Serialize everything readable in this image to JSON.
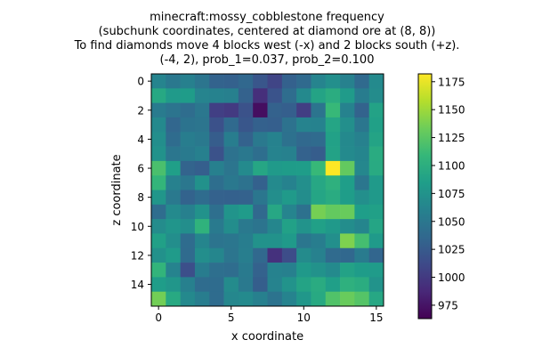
{
  "chart_data": {
    "type": "heatmap",
    "title_lines": [
      "minecraft:mossy_cobblestone frequency",
      "(subchunk coordinates, centered at diamond ore at (8, 8))",
      "To find diamonds move 4 blocks west (-x) and 2 blocks south (+z).",
      "(-4, 2), prob_1=0.037, prob_2=0.100"
    ],
    "xlabel": "x coordinate",
    "ylabel": "z coordinate",
    "x_ticks": [
      0,
      5,
      10,
      15
    ],
    "y_ticks": [
      0,
      2,
      4,
      6,
      8,
      10,
      12,
      14
    ],
    "colormap": "viridis",
    "colorbar": {
      "vmin": 963,
      "vmax": 1182,
      "ticks": [
        975,
        1000,
        1025,
        1050,
        1075,
        1100,
        1125,
        1150,
        1175
      ]
    },
    "grid_size": [
      16,
      16
    ],
    "values": [
      [
        1062,
        1051,
        1058,
        1048,
        1032,
        1030,
        1036,
        1021,
        1008,
        1030,
        1038,
        1062,
        1072,
        1059,
        1038,
        1067
      ],
      [
        1094,
        1081,
        1083,
        1062,
        1060,
        1058,
        1031,
        992,
        1019,
        1041,
        1066,
        1090,
        1098,
        1082,
        1055,
        1069
      ],
      [
        1054,
        1047,
        1041,
        1050,
        1004,
        1000,
        1018,
        971,
        1031,
        1029,
        1003,
        1047,
        1110,
        1060,
        1032,
        1089
      ],
      [
        1066,
        1035,
        1046,
        1048,
        1017,
        1038,
        1021,
        1030,
        1029,
        1045,
        1061,
        1060,
        1091,
        1072,
        1049,
        1087
      ],
      [
        1071,
        1040,
        1056,
        1052,
        1027,
        1056,
        1031,
        1052,
        1060,
        1044,
        1037,
        1039,
        1088,
        1066,
        1059,
        1090
      ],
      [
        1074,
        1049,
        1053,
        1058,
        1018,
        1045,
        1051,
        1042,
        1061,
        1059,
        1031,
        1027,
        1089,
        1067,
        1063,
        1097
      ],
      [
        1118,
        1086,
        1033,
        1029,
        1058,
        1048,
        1067,
        1092,
        1081,
        1083,
        1084,
        1110,
        1182,
        1129,
        1065,
        1096
      ],
      [
        1107,
        1059,
        1050,
        1073,
        1042,
        1051,
        1045,
        1030,
        1067,
        1060,
        1072,
        1093,
        1102,
        1085,
        1049,
        1081
      ],
      [
        1078,
        1052,
        1032,
        1040,
        1031,
        1030,
        1031,
        1049,
        1071,
        1081,
        1070,
        1091,
        1097,
        1084,
        1072,
        1080
      ],
      [
        1041,
        1067,
        1058,
        1074,
        1043,
        1076,
        1082,
        1037,
        1093,
        1062,
        1044,
        1136,
        1129,
        1131,
        1085,
        1087
      ],
      [
        1069,
        1077,
        1071,
        1104,
        1053,
        1070,
        1052,
        1047,
        1064,
        1088,
        1075,
        1087,
        1080,
        1070,
        1063,
        1091
      ],
      [
        1087,
        1071,
        1040,
        1063,
        1047,
        1049,
        1056,
        1074,
        1074,
        1081,
        1049,
        1056,
        1072,
        1139,
        1116,
        1081
      ],
      [
        1073,
        1082,
        1039,
        1071,
        1064,
        1048,
        1057,
        1037,
        994,
        1014,
        1068,
        1059,
        1039,
        1036,
        1054,
        1034
      ],
      [
        1106,
        1061,
        1016,
        1055,
        1043,
        1041,
        1053,
        1031,
        1060,
        1058,
        1080,
        1074,
        1067,
        1089,
        1083,
        1082
      ],
      [
        1084,
        1078,
        1058,
        1040,
        1040,
        1068,
        1052,
        1028,
        1061,
        1075,
        1090,
        1097,
        1086,
        1102,
        1098,
        1075
      ],
      [
        1135,
        1095,
        1066,
        1056,
        1040,
        1065,
        1067,
        1058,
        1046,
        1061,
        1079,
        1095,
        1121,
        1131,
        1123,
        1093
      ]
    ]
  }
}
